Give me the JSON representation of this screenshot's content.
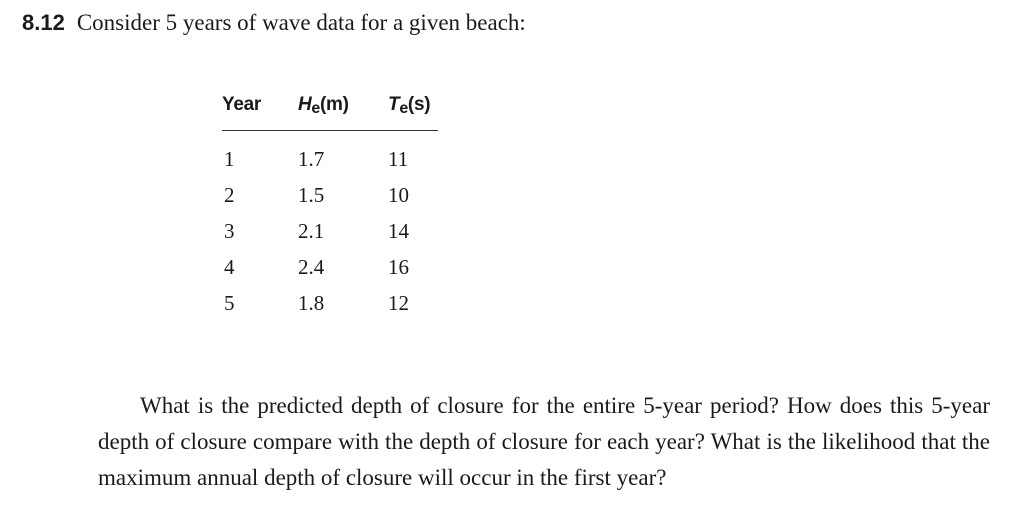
{
  "problem": {
    "number": "8.12",
    "intro": "Consider 5 years of wave data for a given beach:"
  },
  "table": {
    "headers": {
      "year": "Year",
      "wave_height": {
        "symbol": "H",
        "subscript": "e",
        "unit": "(m)"
      },
      "wave_period": {
        "symbol": "T",
        "subscript": "e",
        "unit": "(s)"
      }
    },
    "rows": [
      {
        "year": "1",
        "He": "1.7",
        "Te": "11"
      },
      {
        "year": "2",
        "He": "1.5",
        "Te": "10"
      },
      {
        "year": "3",
        "He": "2.1",
        "Te": "14"
      },
      {
        "year": "4",
        "He": "2.4",
        "Te": "16"
      },
      {
        "year": "5",
        "He": "1.8",
        "Te": "12"
      }
    ]
  },
  "question": "What is the predicted depth of closure for the entire 5-year period? How does this 5-year depth of closure compare with the depth of closure for each year? What is the likelihood that the maximum annual depth of closure will occur in the first year?"
}
